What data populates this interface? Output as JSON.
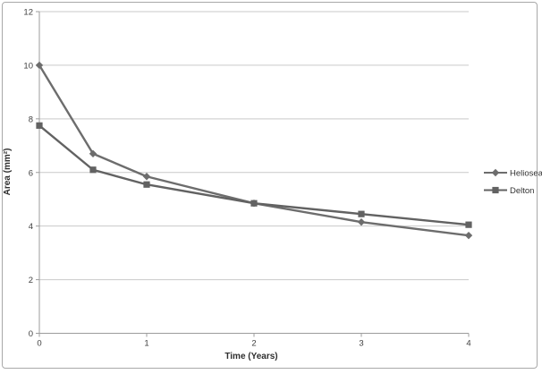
{
  "chart_data": {
    "type": "line",
    "title": "",
    "xlabel": "Time (Years)",
    "ylabel": "Area (mm²)",
    "xlim": [
      0,
      4
    ],
    "ylim": [
      0,
      12
    ],
    "x_ticks": [
      0,
      1,
      2,
      3,
      4
    ],
    "y_ticks": [
      0,
      2,
      4,
      6,
      8,
      10,
      12
    ],
    "grid": "horizontal",
    "legend_position": "right-middle",
    "x": [
      0,
      0.5,
      1,
      2,
      3,
      4
    ],
    "series": [
      {
        "name": "Helioseal",
        "marker": "diamond",
        "color": "#6d6d6d",
        "values": [
          10,
          6.7,
          5.85,
          4.85,
          4.15,
          3.65
        ]
      },
      {
        "name": "Delton",
        "marker": "square",
        "color": "#626262",
        "values": [
          7.75,
          6.1,
          5.55,
          4.85,
          4.45,
          4.05
        ]
      }
    ]
  },
  "colors": {
    "background": "#ffffff",
    "frame_border": "#a9a9a9",
    "gridline": "#c9c9c9",
    "axis": "#9c9c9c",
    "tick_text": "#3f3f3f"
  }
}
